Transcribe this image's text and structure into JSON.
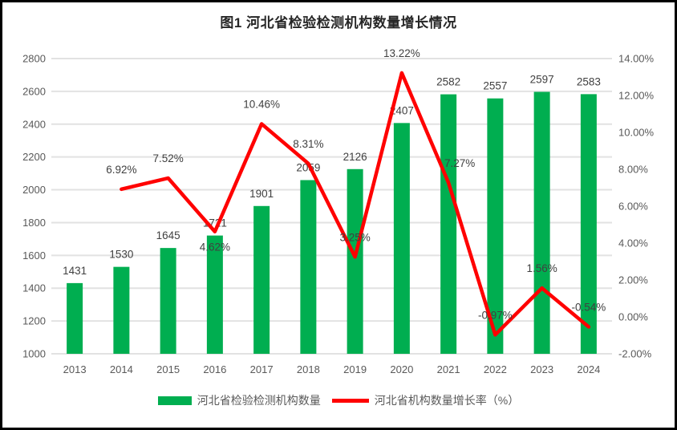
{
  "title": "图1 河北省检验检测机构数量增长情况",
  "legend": {
    "bar_label": "河北省检验检测机构数量",
    "line_label": "河北省机构数量增长率（%）"
  },
  "colors": {
    "bar": "#00AE50",
    "line": "#FF0000",
    "grid": "#E2E2E2",
    "axis_text": "#595959",
    "label_text": "#404040",
    "title_text": "#262626",
    "border": "#000000",
    "background": "#FFFFFF"
  },
  "chart_data": {
    "type": "bar",
    "subtype": "combo-bar-line",
    "title": "图1 河北省检验检测机构数量增长情况",
    "categories": [
      "2013",
      "2014",
      "2015",
      "2016",
      "2017",
      "2018",
      "2019",
      "2020",
      "2021",
      "2022",
      "2023",
      "2024"
    ],
    "series": [
      {
        "name": "河北省检验检测机构数量",
        "type": "bar",
        "axis": "left",
        "color": "#00AE50",
        "values": [
          1431,
          1530,
          1645,
          1721,
          1901,
          2059,
          2126,
          2407,
          2582,
          2557,
          2597,
          2583
        ],
        "value_labels": [
          "1431",
          "1530",
          "1645",
          "1721",
          "1901",
          "2059",
          "2126",
          "2407",
          "2582",
          "2557",
          "2597",
          "2583"
        ]
      },
      {
        "name": "河北省机构数量增长率（%）",
        "type": "line",
        "axis": "right",
        "color": "#FF0000",
        "values": [
          null,
          6.92,
          7.52,
          4.62,
          10.46,
          8.31,
          3.25,
          13.22,
          7.27,
          -0.97,
          1.56,
          -0.54
        ],
        "value_labels": [
          null,
          "6.92%",
          "7.52%",
          "4.62%",
          "10.46%",
          "8.31%",
          "3.25%",
          "13.22%",
          "7.27%",
          "-0.97%",
          "1.56%",
          "-0.54%"
        ]
      }
    ],
    "left_axis": {
      "min": 1000,
      "max": 2800,
      "step": 200,
      "ticks": [
        "1000",
        "1200",
        "1400",
        "1600",
        "1800",
        "2000",
        "2200",
        "2400",
        "2600",
        "2800"
      ]
    },
    "right_axis": {
      "min": -2,
      "max": 14,
      "step": 2,
      "ticks": [
        "-2.00%",
        "0.00%",
        "2.00%",
        "4.00%",
        "6.00%",
        "8.00%",
        "10.00%",
        "12.00%",
        "14.00%"
      ]
    },
    "grid": true,
    "legend_position": "bottom"
  }
}
